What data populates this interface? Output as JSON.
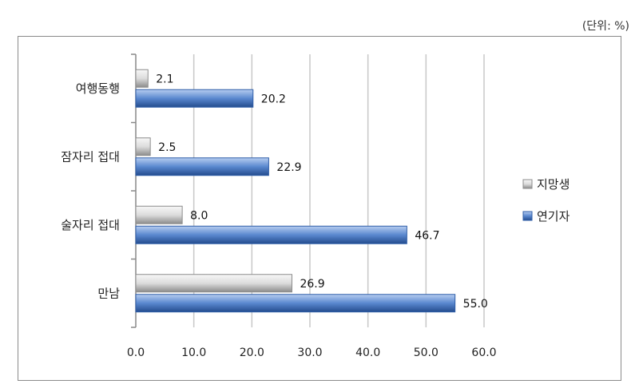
{
  "unit_note": "(단위: %)",
  "colors": {
    "aspirant_light": "#e8e8e8",
    "aspirant_dark": "#8c8c8c",
    "actor_light": "#9ab8e6",
    "actor_dark": "#2f5ea8",
    "grid": "#c8c8c8",
    "axis": "#888888"
  },
  "chart_data": {
    "type": "bar",
    "orientation": "horizontal",
    "categories": [
      "여행동행",
      "잠자리 접대",
      "술자리 접대",
      "만남"
    ],
    "series": [
      {
        "name": "지망생",
        "values": [
          2.1,
          2.5,
          8.0,
          26.9
        ]
      },
      {
        "name": "연기자",
        "values": [
          20.2,
          22.9,
          46.7,
          55.0
        ]
      }
    ],
    "data_labels": [
      [
        "2.1",
        "2.5",
        "8.0",
        "26.9"
      ],
      [
        "20.2",
        "22.9",
        "46.7",
        "55.0"
      ]
    ],
    "xlim": [
      0,
      60
    ],
    "x_ticks": [
      "0.0",
      "10.0",
      "20.0",
      "30.0",
      "40.0",
      "50.0",
      "60.0"
    ],
    "grid": true,
    "legend_position": "right"
  }
}
